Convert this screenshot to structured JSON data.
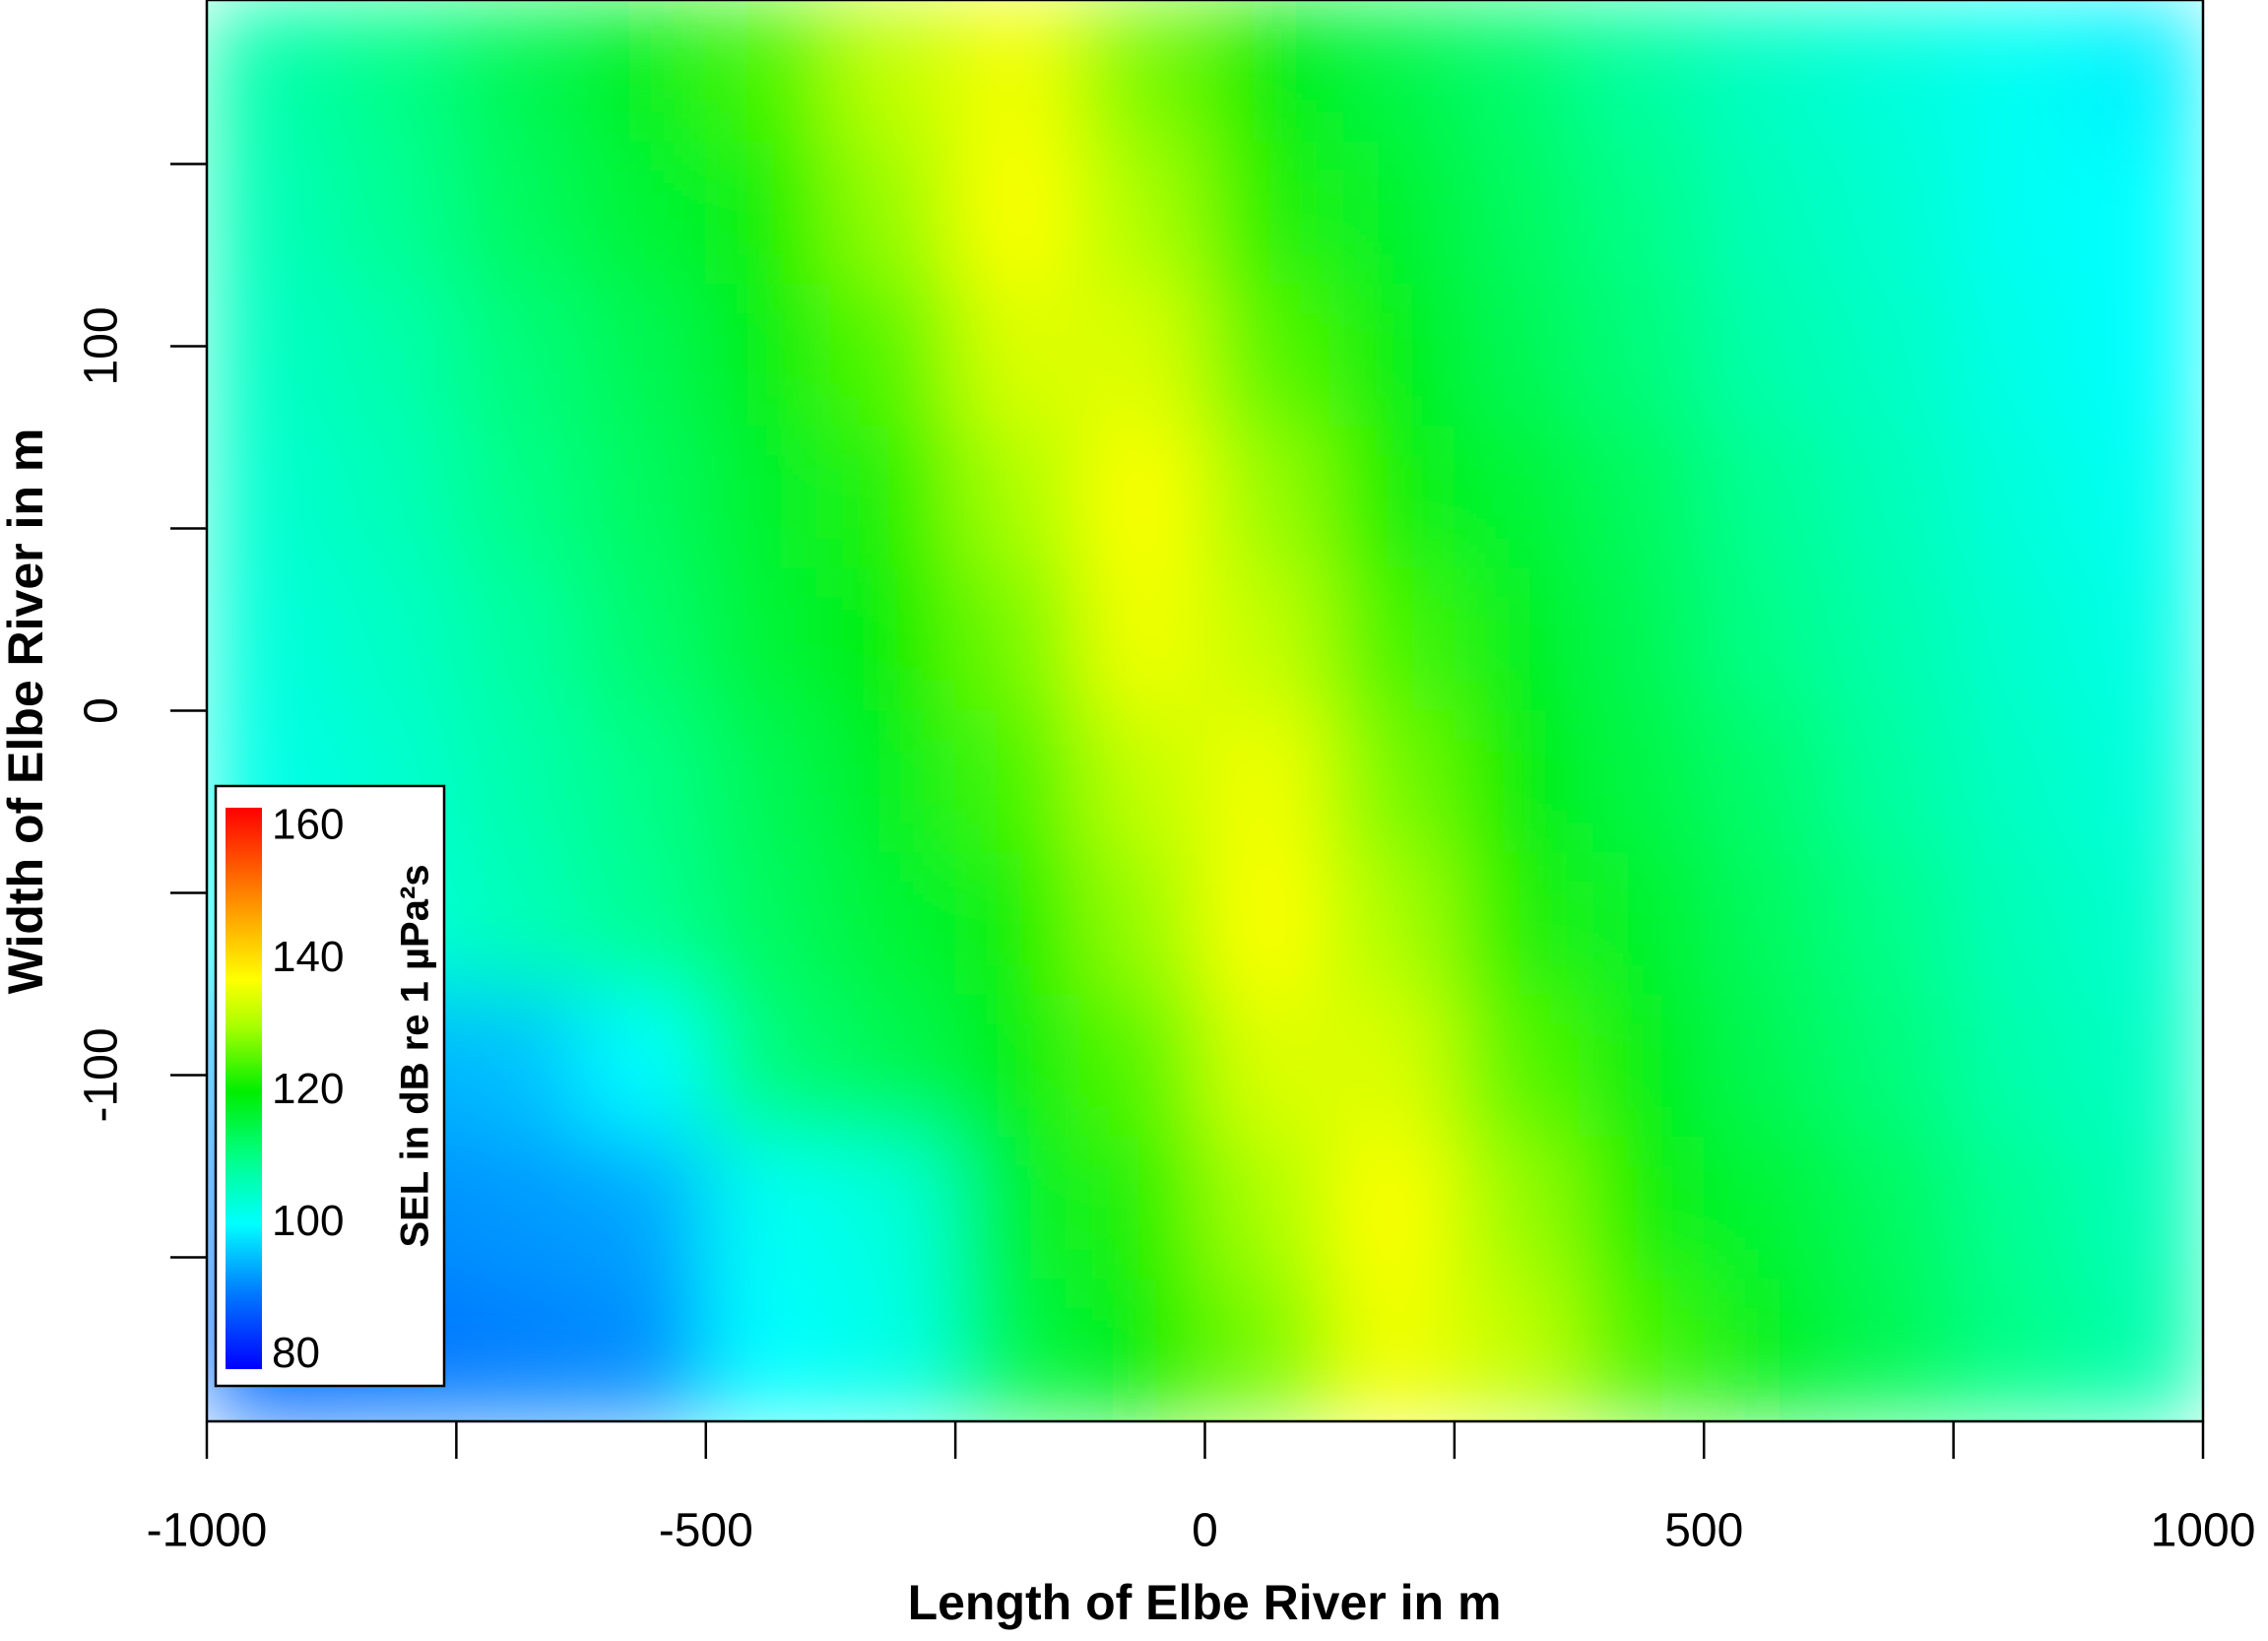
{
  "chart_data": {
    "type": "heatmap",
    "xlabel": "Length of Elbe River in m",
    "ylabel": "Width of Elbe River in m",
    "xlim": [
      -1000,
      1000
    ],
    "ylim": [
      -195,
      195
    ],
    "xticks": [
      -1000,
      -500,
      0,
      500,
      1000
    ],
    "xminor_ticks": [
      -750,
      -250,
      250,
      750
    ],
    "yticks": [
      -100,
      0,
      100
    ],
    "yminor_ticks": [
      -150,
      -50,
      50,
      150
    ],
    "x": [
      -937.5,
      -812.5,
      -687.5,
      -562.5,
      -437.5,
      -312.5,
      -187.5,
      -62.5,
      62.5,
      187.5,
      312.5,
      437.5,
      562.5,
      687.5,
      812.5,
      937.5
    ],
    "y": [
      175.5,
      136.5,
      97.5,
      58.5,
      19.5,
      -19.5,
      -58.5,
      -97.5,
      -136.5,
      -175.5
    ],
    "z": [
      [
        107,
        110,
        114,
        118,
        124,
        132,
        136,
        127,
        120,
        115,
        112,
        108,
        105,
        103,
        101,
        99
      ],
      [
        106,
        109,
        113,
        116,
        121,
        129,
        137,
        130,
        122,
        117,
        113,
        110,
        106,
        104,
        101,
        100
      ],
      [
        105,
        107,
        111,
        114,
        119,
        125,
        134,
        134,
        125,
        119,
        114,
        111,
        107,
        105,
        102,
        100
      ],
      [
        104,
        106,
        110,
        113,
        117,
        122,
        130,
        137,
        129,
        121,
        116,
        113,
        109,
        106,
        103,
        101
      ],
      [
        103,
        105,
        108,
        112,
        116,
        120,
        127,
        136,
        132,
        124,
        118,
        114,
        110,
        107,
        104,
        102
      ],
      [
        102,
        104,
        107,
        110,
        114,
        118,
        124,
        132,
        136,
        127,
        120,
        115,
        112,
        108,
        105,
        103
      ],
      [
        101,
        103,
        106,
        109,
        113,
        116,
        121,
        129,
        137,
        130,
        122,
        117,
        113,
        110,
        106,
        104
      ],
      [
        93,
        94,
        95,
        100,
        111,
        114,
        119,
        125,
        134,
        134,
        125,
        119,
        114,
        111,
        107,
        105
      ],
      [
        90,
        91,
        92,
        93,
        101,
        103,
        117,
        122,
        130,
        137,
        129,
        121,
        116,
        113,
        109,
        106
      ],
      [
        88,
        89,
        90,
        91,
        100,
        102,
        115,
        120,
        127,
        136,
        132,
        124,
        118,
        114,
        110,
        107
      ]
    ],
    "colormap": [
      {
        "value": 78,
        "color": "#0000ff"
      },
      {
        "value": 90,
        "color": "#0080ff"
      },
      {
        "value": 100,
        "color": "#00ffff"
      },
      {
        "value": 110,
        "color": "#00ff88"
      },
      {
        "value": 120,
        "color": "#00ee00"
      },
      {
        "value": 130,
        "color": "#aaff00"
      },
      {
        "value": 137,
        "color": "#ffff00"
      },
      {
        "value": 146,
        "color": "#ffaa00"
      },
      {
        "value": 163,
        "color": "#ff0000"
      }
    ],
    "colorbar": {
      "label": "SEL in dB re 1 µPa²s",
      "lim": [
        78,
        163
      ],
      "ticks": [
        80,
        100,
        120,
        140,
        160
      ]
    }
  }
}
